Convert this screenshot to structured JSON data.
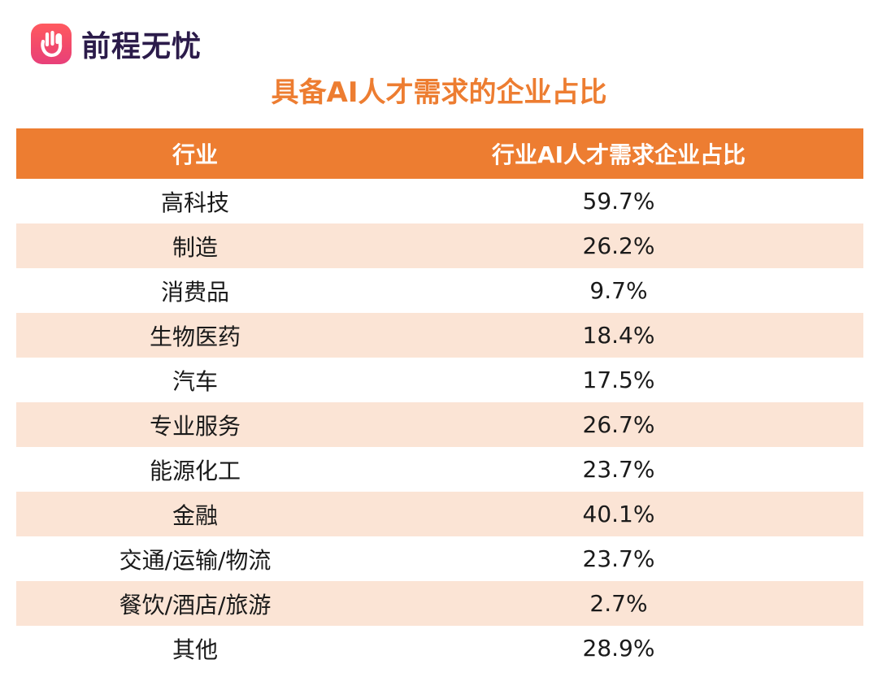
{
  "brand": {
    "name": "前程无忧",
    "accent": "#ED7D31",
    "row_shade": "#FBE4D5"
  },
  "chart_data": {
    "type": "table",
    "title": "具备AI人才需求的企业占比",
    "columns": [
      "行业",
      "行业AI人才需求企业占比"
    ],
    "rows": [
      {
        "industry": "高科技",
        "share": "59.7%"
      },
      {
        "industry": "制造",
        "share": "26.2%"
      },
      {
        "industry": "消费品",
        "share": "9.7%"
      },
      {
        "industry": "生物医药",
        "share": "18.4%"
      },
      {
        "industry": "汽车",
        "share": "17.5%"
      },
      {
        "industry": "专业服务",
        "share": "26.7%"
      },
      {
        "industry": "能源化工",
        "share": "23.7%"
      },
      {
        "industry": "金融",
        "share": "40.1%"
      },
      {
        "industry": "交通/运输/物流",
        "share": "23.7%"
      },
      {
        "industry": "餐饮/酒店/旅游",
        "share": "2.7%"
      },
      {
        "industry": "其他",
        "share": "28.9%"
      }
    ]
  }
}
